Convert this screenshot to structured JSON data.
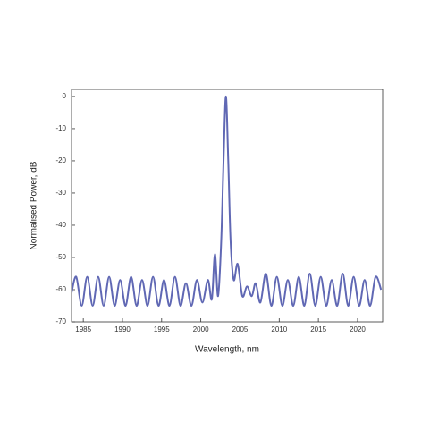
{
  "chart_data": {
    "type": "line",
    "xlabel": "Wavelength, nm",
    "ylabel": "Normalised Power, dB",
    "xlim": [
      1983.5,
      2023.2
    ],
    "ylim": [
      -70,
      2.2
    ],
    "xticks": [
      1985,
      1990,
      1995,
      2000,
      2005,
      2010,
      2015,
      2020
    ],
    "yticks": [
      0,
      -10,
      -20,
      -30,
      -40,
      -50,
      -60,
      -70
    ],
    "series": [
      {
        "color": "#6068b4",
        "x": [
          1983.5,
          1984.1,
          1984.8,
          1985.5,
          1986.2,
          1986.9,
          1987.6,
          1988.3,
          1989.0,
          1989.7,
          1990.4,
          1991.1,
          1991.8,
          1992.5,
          1993.2,
          1993.9,
          1994.6,
          1995.3,
          1996.0,
          1996.7,
          1997.4,
          1998.1,
          1998.8,
          1999.5,
          2000.2,
          2000.9,
          2001.4,
          2001.8,
          2002.2,
          2002.6,
          2002.9,
          2003.2,
          2003.5,
          2003.8,
          2004.2,
          2004.7,
          2005.3,
          2005.9,
          2006.5,
          2007.0,
          2007.6,
          2008.3,
          2009.0,
          2009.7,
          2010.4,
          2011.1,
          2011.8,
          2012.5,
          2013.2,
          2013.9,
          2014.6,
          2015.3,
          2016.0,
          2016.7,
          2017.4,
          2018.1,
          2018.8,
          2019.5,
          2020.2,
          2020.9,
          2021.6,
          2022.3,
          2023.0
        ],
        "values": [
          -61,
          -56,
          -65,
          -56,
          -65,
          -56,
          -65,
          -56,
          -65,
          -57,
          -65,
          -56,
          -65,
          -57,
          -65,
          -56,
          -65,
          -57,
          -65,
          -56,
          -65,
          -58,
          -65,
          -57,
          -64,
          -57,
          -63,
          -49,
          -62,
          -45,
          -20,
          0,
          -20,
          -45,
          -57,
          -52,
          -62,
          -59,
          -62,
          -58,
          -64,
          -55,
          -65,
          -56,
          -65,
          -57,
          -65,
          -56,
          -65,
          -55,
          -65,
          -56,
          -65,
          -57,
          -65,
          -55,
          -65,
          -56,
          -65,
          -57,
          -65,
          -56,
          -60
        ]
      }
    ]
  }
}
